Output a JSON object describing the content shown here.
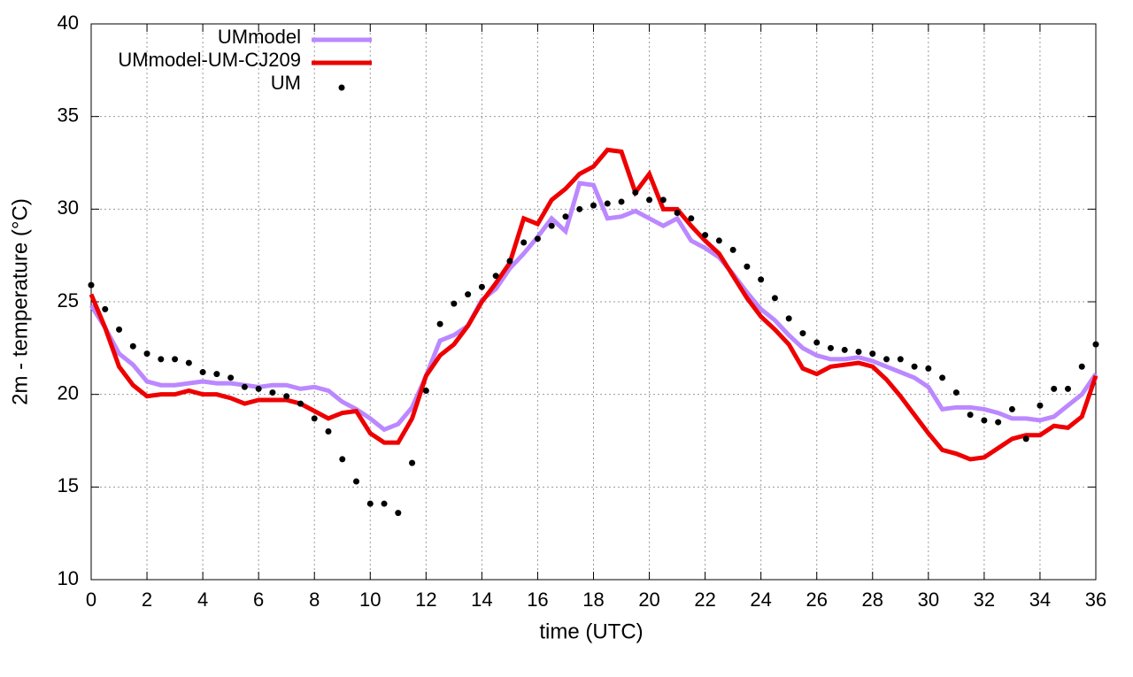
{
  "chart_data": {
    "type": "line",
    "xlabel": "time (UTC)",
    "ylabel": "2m - temperature (°C)",
    "x": [
      0,
      0.5,
      1,
      1.5,
      2,
      2.5,
      3,
      3.5,
      4,
      4.5,
      5,
      5.5,
      6,
      6.5,
      7,
      7.5,
      8,
      8.5,
      9,
      9.5,
      10,
      10.5,
      11,
      11.5,
      12,
      12.5,
      13,
      13.5,
      14,
      14.5,
      15,
      15.5,
      16,
      16.5,
      17,
      17.5,
      18,
      18.5,
      19,
      19.5,
      20,
      20.5,
      21,
      21.5,
      22,
      22.5,
      23,
      23.5,
      24,
      24.5,
      25,
      25.5,
      26,
      26.5,
      27,
      27.5,
      28,
      28.5,
      29,
      29.5,
      30,
      30.5,
      31,
      31.5,
      32,
      32.5,
      33,
      33.5,
      34,
      34.5,
      35,
      35.5,
      36
    ],
    "series": [
      {
        "name": "UMmodel",
        "color": "#bb88ff",
        "style": "lines",
        "values": [
          24.8,
          23.6,
          22.2,
          21.6,
          20.7,
          20.5,
          20.5,
          20.6,
          20.7,
          20.6,
          20.6,
          20.5,
          20.4,
          20.5,
          20.5,
          20.3,
          20.4,
          20.2,
          19.6,
          19.2,
          18.7,
          18.1,
          18.4,
          19.3,
          21.0,
          22.9,
          23.2,
          23.7,
          25.1,
          25.7,
          26.8,
          27.6,
          28.5,
          29.5,
          28.8,
          31.4,
          31.3,
          29.5,
          29.6,
          29.9,
          29.5,
          29.1,
          29.5,
          28.3,
          27.9,
          27.4,
          26.5,
          25.5,
          24.6,
          24.0,
          23.2,
          22.5,
          22.1,
          21.9,
          21.9,
          22.0,
          21.8,
          21.5,
          21.2,
          20.9,
          20.4,
          19.2,
          19.3,
          19.3,
          19.2,
          19.0,
          18.7,
          18.7,
          18.6,
          18.8,
          19.4,
          20.0,
          21.1
        ]
      },
      {
        "name": "UMmodel-UM-CJ209",
        "color": "#ee0000",
        "style": "lines",
        "values": [
          25.4,
          23.6,
          21.5,
          20.5,
          19.9,
          20.0,
          20.0,
          20.2,
          20.0,
          20.0,
          19.8,
          19.5,
          19.7,
          19.7,
          19.7,
          19.5,
          19.1,
          18.7,
          19.0,
          19.1,
          17.9,
          17.4,
          17.4,
          18.7,
          21.0,
          22.1,
          22.7,
          23.7,
          25.0,
          26.0,
          27.1,
          29.5,
          29.2,
          30.5,
          31.1,
          31.9,
          32.3,
          33.2,
          33.1,
          30.9,
          31.9,
          30.0,
          30.0,
          29.1,
          28.3,
          27.6,
          26.4,
          25.2,
          24.2,
          23.5,
          22.7,
          21.4,
          21.1,
          21.5,
          21.6,
          21.7,
          21.5,
          20.8,
          19.9,
          18.9,
          17.9,
          17.0,
          16.8,
          16.5,
          16.6,
          17.1,
          17.6,
          17.8,
          17.8,
          18.3,
          18.2,
          18.8,
          21.0
        ]
      },
      {
        "name": "UM",
        "color": "#000000",
        "style": "points",
        "values": [
          25.9,
          24.6,
          23.5,
          22.6,
          22.2,
          21.9,
          21.9,
          21.7,
          21.2,
          21.1,
          20.9,
          20.4,
          20.3,
          20.1,
          19.9,
          19.5,
          18.7,
          18.0,
          16.5,
          15.3,
          14.1,
          14.1,
          13.6,
          16.3,
          20.2,
          23.8,
          24.9,
          25.4,
          25.8,
          26.4,
          27.2,
          28.2,
          28.4,
          29.1,
          29.6,
          30.0,
          30.2,
          30.3,
          30.4,
          30.9,
          30.5,
          30.5,
          29.8,
          29.5,
          28.6,
          28.3,
          27.8,
          26.9,
          26.2,
          25.2,
          24.1,
          23.3,
          22.8,
          22.5,
          22.4,
          22.3,
          22.2,
          21.9,
          21.9,
          21.5,
          21.4,
          20.9,
          20.1,
          18.9,
          18.6,
          18.5,
          19.2,
          17.6,
          19.4,
          20.3,
          20.3,
          21.5,
          22.7
        ]
      }
    ],
    "xlim": [
      0,
      36
    ],
    "xticks": [
      0,
      2,
      4,
      6,
      8,
      10,
      12,
      14,
      16,
      18,
      20,
      22,
      24,
      26,
      28,
      30,
      32,
      34,
      36
    ],
    "ylim": [
      10,
      40
    ],
    "yticks": [
      10,
      15,
      20,
      25,
      30,
      35,
      40
    ],
    "grid": true,
    "legend": "top-left"
  }
}
